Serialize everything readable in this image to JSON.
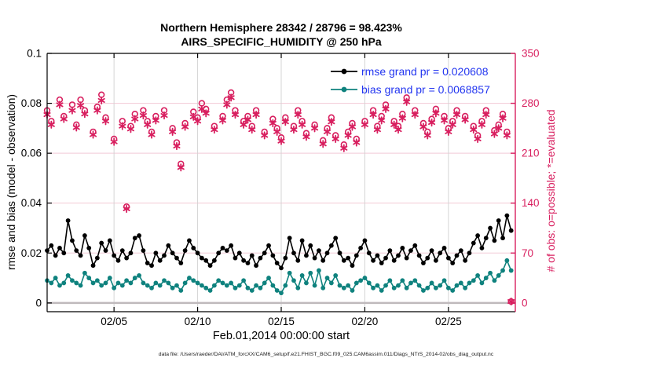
{
  "title": {
    "line1": "Northern Hemisphere 28342 / 28796 = 98.423%",
    "line2": "AIRS_SPECIFIC_HUMIDITY @ 250 hPa"
  },
  "axes": {
    "ylabel_left": "rmse and bias (model - observation)",
    "ylabel_right": "# of obs: o=possible; *=evaluated",
    "xlabel": "Feb.01,2014 00:00:00 start"
  },
  "legend": {
    "items": [
      {
        "label": "rmse grand pr = 0.020608",
        "series": "rmse"
      },
      {
        "label": "bias grand pr = 0.0068857",
        "series": "bias"
      }
    ],
    "text_color": "#2336f0"
  },
  "footer": "data file: /Users/raeder/DAI/ATM_forcXX/CAM6_setup/f.e21.FHIST_BGC.f09_025.CAM6assim.011/Diags_NTrS_2014-02/obs_diag_output.nc",
  "chart_data": {
    "type": "line",
    "title": "Northern Hemisphere 28342 / 28796 = 98.423% — AIRS_SPECIFIC_HUMIDITY @ 250 hPa",
    "x_axis": {
      "label": "Feb.01,2014 00:00:00 start",
      "lim": [
        0,
        28
      ],
      "start_day": 0,
      "step_days": 0.25,
      "ticks": [
        4,
        9,
        14,
        19,
        24
      ],
      "tick_labels": [
        "02/05",
        "02/10",
        "02/15",
        "02/20",
        "02/25"
      ]
    },
    "left_axis": {
      "label": "rmse and bias (model - observation)",
      "lim": [
        -0.0035,
        0.1
      ],
      "ticks": [
        0,
        0.02,
        0.04,
        0.06,
        0.08,
        0.1
      ],
      "tick_labels": [
        "0",
        "0.02",
        "0.04",
        "0.06",
        "0.08",
        "0.1"
      ]
    },
    "right_axis": {
      "label": "# of obs: o=possible; *=evaluated",
      "lim": [
        -12.25,
        350
      ],
      "ticks": [
        0,
        70,
        140,
        210,
        280,
        350
      ],
      "tick_labels": [
        "0",
        "70",
        "140",
        "210",
        "280",
        "350"
      ]
    },
    "grid": true,
    "legend_position": "top-right-inside",
    "series": [
      {
        "name": "rmse",
        "axis": "left",
        "grand_mean": 0.020608,
        "marker": "filled-circle",
        "values": [
          0.021,
          0.023,
          0.019,
          0.022,
          0.02,
          0.033,
          0.025,
          0.021,
          0.019,
          0.027,
          0.022,
          0.015,
          0.018,
          0.024,
          0.021,
          0.025,
          0.019,
          0.017,
          0.021,
          0.018,
          0.02,
          0.026,
          0.027,
          0.021,
          0.016,
          0.015,
          0.02,
          0.017,
          0.019,
          0.023,
          0.02,
          0.018,
          0.016,
          0.021,
          0.025,
          0.022,
          0.02,
          0.018,
          0.017,
          0.015,
          0.017,
          0.02,
          0.022,
          0.021,
          0.023,
          0.018,
          0.02,
          0.017,
          0.016,
          0.019,
          0.015,
          0.018,
          0.02,
          0.023,
          0.019,
          0.016,
          0.014,
          0.018,
          0.026,
          0.02,
          0.017,
          0.025,
          0.019,
          0.023,
          0.018,
          0.021,
          0.017,
          0.02,
          0.023,
          0.026,
          0.02,
          0.017,
          0.018,
          0.015,
          0.019,
          0.022,
          0.025,
          0.02,
          0.017,
          0.019,
          0.016,
          0.018,
          0.021,
          0.017,
          0.019,
          0.022,
          0.018,
          0.021,
          0.023,
          0.019,
          0.016,
          0.018,
          0.021,
          0.017,
          0.02,
          0.022,
          0.018,
          0.016,
          0.019,
          0.021,
          0.017,
          0.02,
          0.024,
          0.027,
          0.022,
          0.026,
          0.03,
          0.025,
          0.033,
          0.026,
          0.035,
          0.029
        ]
      },
      {
        "name": "bias",
        "axis": "left",
        "grand_mean": 0.0068857,
        "marker": "filled-circle",
        "values": [
          0.009,
          0.008,
          0.01,
          0.007,
          0.008,
          0.011,
          0.009,
          0.008,
          0.007,
          0.012,
          0.01,
          0.008,
          0.009,
          0.007,
          0.008,
          0.01,
          0.006,
          0.008,
          0.007,
          0.009,
          0.008,
          0.01,
          0.011,
          0.008,
          0.007,
          0.006,
          0.008,
          0.007,
          0.009,
          0.008,
          0.006,
          0.007,
          0.005,
          0.008,
          0.01,
          0.009,
          0.008,
          0.007,
          0.006,
          0.005,
          0.007,
          0.009,
          0.008,
          0.007,
          0.008,
          0.006,
          0.007,
          0.009,
          0.006,
          0.005,
          0.007,
          0.006,
          0.008,
          0.01,
          0.007,
          0.005,
          0.004,
          0.007,
          0.012,
          0.009,
          0.006,
          0.011,
          0.008,
          0.012,
          0.007,
          0.013,
          0.006,
          0.01,
          0.008,
          0.011,
          0.007,
          0.006,
          0.007,
          0.005,
          0.008,
          0.009,
          0.01,
          0.008,
          0.006,
          0.007,
          0.005,
          0.007,
          0.009,
          0.006,
          0.007,
          0.009,
          0.006,
          0.008,
          0.009,
          0.007,
          0.005,
          0.006,
          0.008,
          0.006,
          0.007,
          0.009,
          0.006,
          0.005,
          0.007,
          0.008,
          0.006,
          0.008,
          0.009,
          0.011,
          0.008,
          0.01,
          0.012,
          0.009,
          0.011,
          0.013,
          0.017,
          0.013
        ]
      }
    ],
    "obs": {
      "axis": "right",
      "possible_marker": "open-circle",
      "evaluated_marker": "asterisk",
      "possible": [
        270,
        255,
        null,
        285,
        262,
        null,
        278,
        250,
        285,
        270,
        null,
        240,
        275,
        292,
        260,
        null,
        230,
        null,
        255,
        135,
        248,
        265,
        null,
        270,
        255,
        240,
        262,
        null,
        270,
        null,
        245,
        225,
        195,
        252,
        null,
        268,
        260,
        280,
        272,
        null,
        248,
        null,
        262,
        285,
        295,
        270,
        null,
        255,
        262,
        248,
        270,
        null,
        240,
        null,
        258,
        245,
        232,
        260,
        null,
        248,
        270,
        255,
        238,
        null,
        250,
        null,
        228,
        245,
        260,
        235,
        null,
        222,
        240,
        252,
        230,
        null,
        255,
        null,
        270,
        248,
        262,
        278,
        null,
        255,
        248,
        265,
        288,
        null,
        270,
        null,
        252,
        240,
        258,
        272,
        null,
        262,
        245,
        255,
        270,
        null,
        262,
        null,
        248,
        235,
        255,
        270,
        null,
        242,
        250,
        265,
        240,
        2
      ],
      "evaluated": [
        264,
        250,
        null,
        278,
        258,
        null,
        270,
        246,
        277,
        265,
        null,
        236,
        270,
        284,
        255,
        null,
        226,
        null,
        248,
        132,
        244,
        258,
        null,
        263,
        250,
        236,
        256,
        null,
        263,
        null,
        240,
        220,
        190,
        247,
        null,
        261,
        255,
        272,
        266,
        null,
        243,
        null,
        256,
        278,
        288,
        264,
        null,
        250,
        257,
        243,
        264,
        null,
        235,
        null,
        252,
        240,
        227,
        254,
        null,
        243,
        264,
        250,
        233,
        null,
        245,
        null,
        223,
        240,
        254,
        230,
        null,
        217,
        235,
        247,
        225,
        null,
        250,
        null,
        264,
        243,
        256,
        272,
        null,
        250,
        243,
        259,
        282,
        null,
        264,
        null,
        247,
        235,
        253,
        266,
        null,
        256,
        240,
        250,
        264,
        null,
        257,
        null,
        243,
        230,
        250,
        264,
        null,
        237,
        245,
        259,
        235,
        2
      ]
    },
    "colors": {
      "rmse": "#000000",
      "bias": "#0f827e",
      "obs": "#d81f5f",
      "grid_h": "#f2c9d6",
      "grid_v": "#d4d4d4",
      "zero_line": "#bfb9bc",
      "spine": "#000000"
    }
  }
}
